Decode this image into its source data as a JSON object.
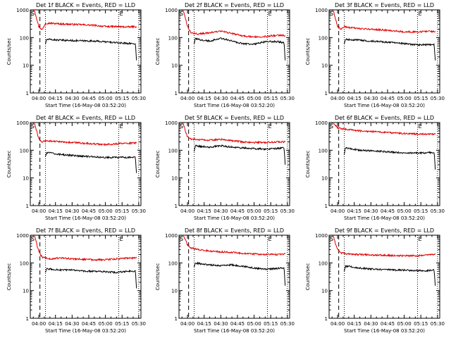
{
  "page": {
    "colors": {
      "events": "#000000",
      "lld": "#e00000",
      "axes": "#000000",
      "background": "#ffffff"
    }
  },
  "chart_data": [
    {
      "type": "line",
      "title": "Det 1f BLACK = Events, RED = LLD",
      "xlabel": "Start Time (16-May-08 03:52:20)",
      "ylabel": "Counts/sec",
      "yscale": "log",
      "ylim": [
        1,
        1000
      ],
      "ytick_labels": [
        "1",
        "10",
        "100",
        "1000"
      ],
      "xlim": [
        "03:52:20",
        "05:32:00"
      ],
      "xtick_labels": [
        "04:00",
        "04:15",
        "04:30",
        "04:45",
        "05:00",
        "05:15",
        "05:30"
      ],
      "markers": {
        "S": "03:52:20",
        "E": "05:12:00"
      },
      "vlines": {
        "dashed": "04:01:00",
        "dotted": [
          "04:06:00",
          "05:12:00",
          "05:30:00"
        ]
      },
      "series": [
        {
          "name": "LLD",
          "color": "red",
          "x": [
            "03:56",
            "03:58",
            "04:00",
            "04:03",
            "04:06",
            "04:10",
            "04:20",
            "04:30",
            "04:40",
            "04:50",
            "05:00",
            "05:10",
            "05:20",
            "05:28"
          ],
          "values": [
            1000,
            500,
            250,
            190,
            330,
            330,
            310,
            300,
            290,
            275,
            250,
            250,
            240,
            250
          ]
        },
        {
          "name": "Events",
          "color": "black",
          "x": [
            "04:06",
            "04:07",
            "04:10",
            "04:20",
            "04:30",
            "04:40",
            "04:50",
            "05:00",
            "05:10",
            "05:20",
            "05:27",
            "05:28"
          ],
          "values": [
            60,
            85,
            85,
            80,
            78,
            76,
            75,
            70,
            65,
            62,
            60,
            15
          ]
        }
      ]
    },
    {
      "type": "line",
      "title": "Det 2f BLACK = Events, RED = LLD",
      "xlabel": "Start Time (16-May-08 03:52:20)",
      "ylabel": "Counts/sec",
      "yscale": "log",
      "ylim": [
        1,
        1000
      ],
      "ytick_labels": [
        "1",
        "10",
        "100",
        "1000"
      ],
      "xlim": [
        "03:52:20",
        "05:32:00"
      ],
      "xtick_labels": [
        "04:00",
        "04:15",
        "04:30",
        "04:45",
        "05:00",
        "05:15",
        "05:30"
      ],
      "markers": {
        "S": "03:52:20",
        "E": "05:12:00"
      },
      "vlines": {
        "dashed": "04:01:00",
        "dotted": [
          "04:06:00",
          "05:12:00",
          "05:30:00"
        ]
      },
      "series": [
        {
          "name": "LLD",
          "color": "red",
          "x": [
            "03:56",
            "03:58",
            "04:00",
            "04:03",
            "04:06",
            "04:10",
            "04:20",
            "04:30",
            "04:40",
            "04:50",
            "05:00",
            "05:10",
            "05:20",
            "05:28"
          ],
          "values": [
            1000,
            500,
            250,
            150,
            140,
            135,
            150,
            170,
            140,
            115,
            105,
            110,
            120,
            120
          ]
        },
        {
          "name": "Events",
          "color": "black",
          "x": [
            "04:06",
            "04:07",
            "04:10",
            "04:20",
            "04:30",
            "04:40",
            "04:50",
            "05:00",
            "05:10",
            "05:20",
            "05:27",
            "05:28"
          ],
          "values": [
            60,
            90,
            85,
            75,
            95,
            75,
            60,
            58,
            70,
            72,
            65,
            15
          ]
        }
      ]
    },
    {
      "type": "line",
      "title": "Det 3f BLACK = Events, RED = LLD",
      "xlabel": "Start Time (16-May-08 03:52:20)",
      "ylabel": "Counts/sec",
      "yscale": "log",
      "ylim": [
        1,
        1000
      ],
      "ytick_labels": [
        "1",
        "10",
        "100",
        "1000"
      ],
      "xlim": [
        "03:52:20",
        "05:32:00"
      ],
      "xtick_labels": [
        "04:00",
        "04:15",
        "04:30",
        "04:45",
        "05:00",
        "05:15",
        "05:30"
      ],
      "markers": {
        "S": "03:52:20",
        "E": "05:12:00"
      },
      "vlines": {
        "dashed": "04:01:00",
        "dotted": [
          "04:06:00",
          "05:12:00",
          "05:30:00"
        ]
      },
      "series": [
        {
          "name": "LLD",
          "color": "red",
          "x": [
            "03:56",
            "03:58",
            "04:00",
            "04:03",
            "04:06",
            "04:10",
            "04:20",
            "04:30",
            "04:40",
            "04:50",
            "05:00",
            "05:10",
            "05:20",
            "05:28"
          ],
          "values": [
            1000,
            500,
            250,
            200,
            250,
            230,
            210,
            200,
            190,
            175,
            160,
            160,
            165,
            170
          ]
        },
        {
          "name": "Events",
          "color": "black",
          "x": [
            "04:06",
            "04:07",
            "04:10",
            "04:20",
            "04:30",
            "04:40",
            "04:50",
            "05:00",
            "05:10",
            "05:20",
            "05:27",
            "05:28"
          ],
          "values": [
            60,
            85,
            85,
            80,
            75,
            70,
            65,
            60,
            55,
            55,
            55,
            15
          ]
        }
      ]
    },
    {
      "type": "line",
      "title": "Det 4f BLACK = Events, RED = LLD",
      "xlabel": "Start Time (16-May-08 03:52:20)",
      "ylabel": "Counts/sec",
      "yscale": "log",
      "ylim": [
        1,
        1000
      ],
      "ytick_labels": [
        "1",
        "10",
        "100",
        "1000"
      ],
      "xlim": [
        "03:52:20",
        "05:32:00"
      ],
      "xtick_labels": [
        "04:00",
        "04:15",
        "04:30",
        "04:45",
        "05:00",
        "05:15",
        "05:30"
      ],
      "markers": {
        "S": "03:52:20",
        "E": "05:12:00"
      },
      "vlines": {
        "dashed": "04:01:00",
        "dotted": [
          "04:06:00",
          "05:12:00",
          "05:30:00"
        ]
      },
      "series": [
        {
          "name": "LLD",
          "color": "red",
          "x": [
            "03:56",
            "03:58",
            "04:00",
            "04:03",
            "04:06",
            "04:10",
            "04:20",
            "04:30",
            "04:40",
            "04:50",
            "05:00",
            "05:10",
            "05:20",
            "05:28"
          ],
          "values": [
            1000,
            500,
            250,
            200,
            220,
            215,
            200,
            190,
            180,
            170,
            160,
            170,
            180,
            180
          ]
        },
        {
          "name": "Events",
          "color": "black",
          "x": [
            "04:06",
            "04:07",
            "04:10",
            "04:20",
            "04:30",
            "04:40",
            "04:50",
            "05:00",
            "05:10",
            "05:20",
            "05:27",
            "05:28"
          ],
          "values": [
            60,
            80,
            80,
            70,
            65,
            60,
            58,
            55,
            55,
            55,
            55,
            15
          ]
        }
      ]
    },
    {
      "type": "line",
      "title": "Det 5f BLACK = Events, RED = LLD",
      "xlabel": "Start Time (16-May-08 03:52:20)",
      "ylabel": "Counts/sec",
      "yscale": "log",
      "ylim": [
        1,
        1000
      ],
      "ytick_labels": [
        "1",
        "10",
        "100",
        "1000"
      ],
      "xlim": [
        "03:52:20",
        "05:32:00"
      ],
      "xtick_labels": [
        "04:00",
        "04:15",
        "04:30",
        "04:45",
        "05:00",
        "05:15",
        "05:30"
      ],
      "markers": {
        "S": "03:52:20",
        "E": "05:12:00"
      },
      "vlines": {
        "dashed": "04:01:00",
        "dotted": [
          "04:06:00",
          "05:12:00",
          "05:30:00"
        ]
      },
      "series": [
        {
          "name": "LLD",
          "color": "red",
          "x": [
            "03:56",
            "03:58",
            "04:00",
            "04:03",
            "04:06",
            "04:10",
            "04:20",
            "04:30",
            "04:40",
            "04:50",
            "05:00",
            "05:10",
            "05:20",
            "05:28"
          ],
          "values": [
            1000,
            500,
            300,
            250,
            250,
            240,
            230,
            250,
            220,
            200,
            190,
            190,
            200,
            200
          ]
        },
        {
          "name": "Events",
          "color": "black",
          "x": [
            "04:06",
            "04:07",
            "04:10",
            "04:20",
            "04:30",
            "04:40",
            "04:50",
            "05:00",
            "05:10",
            "05:20",
            "05:27",
            "05:28"
          ],
          "values": [
            90,
            150,
            140,
            130,
            145,
            130,
            120,
            115,
            110,
            115,
            120,
            30
          ]
        }
      ]
    },
    {
      "type": "line",
      "title": "Det 6f BLACK = Events, RED = LLD",
      "xlabel": "Start Time (16-May-08 03:52:20)",
      "ylabel": "Counts/sec",
      "yscale": "log",
      "ylim": [
        1,
        1000
      ],
      "ytick_labels": [
        "1",
        "10",
        "100",
        "1000"
      ],
      "xlim": [
        "03:52:20",
        "05:32:00"
      ],
      "xtick_labels": [
        "04:00",
        "04:15",
        "04:30",
        "04:45",
        "05:00",
        "05:15",
        "05:30"
      ],
      "markers": {
        "S": "03:52:20",
        "E": "05:12:00"
      },
      "vlines": {
        "dashed": "04:01:00",
        "dotted": [
          "04:06:00",
          "05:12:00",
          "05:30:00"
        ]
      },
      "series": [
        {
          "name": "LLD",
          "color": "red",
          "x": [
            "03:56",
            "03:58",
            "04:00",
            "04:03",
            "04:06",
            "04:10",
            "04:20",
            "04:30",
            "04:40",
            "04:50",
            "05:00",
            "05:10",
            "05:20",
            "05:28"
          ],
          "values": [
            1000,
            800,
            650,
            600,
            580,
            560,
            500,
            470,
            450,
            420,
            400,
            390,
            380,
            380
          ]
        },
        {
          "name": "Events",
          "color": "black",
          "x": [
            "04:06",
            "04:07",
            "04:10",
            "04:20",
            "04:30",
            "04:40",
            "04:50",
            "05:00",
            "05:10",
            "05:20",
            "05:27",
            "05:28"
          ],
          "values": [
            70,
            120,
            115,
            100,
            95,
            90,
            85,
            80,
            80,
            80,
            85,
            20
          ]
        }
      ]
    },
    {
      "type": "line",
      "title": "Det 7f BLACK = Events, RED = LLD",
      "xlabel": "Start Time (16-May-08 03:52:20)",
      "ylabel": "Counts/sec",
      "yscale": "log",
      "ylim": [
        1,
        1000
      ],
      "ytick_labels": [
        "1",
        "10",
        "100",
        "1000"
      ],
      "xlim": [
        "03:52:20",
        "05:32:00"
      ],
      "xtick_labels": [
        "04:00",
        "04:15",
        "04:30",
        "04:45",
        "05:00",
        "05:15",
        "05:30"
      ],
      "markers": {
        "S": "03:52:20",
        "E": "05:12:00"
      },
      "vlines": {
        "dashed": "04:01:00",
        "dotted": [
          "04:06:00",
          "05:12:00",
          "05:30:00"
        ]
      },
      "series": [
        {
          "name": "LLD",
          "color": "red",
          "x": [
            "03:56",
            "03:58",
            "04:00",
            "04:03",
            "04:06",
            "04:10",
            "04:20",
            "04:30",
            "04:40",
            "04:50",
            "05:00",
            "05:10",
            "05:20",
            "05:28"
          ],
          "values": [
            1000,
            500,
            250,
            160,
            150,
            140,
            150,
            140,
            135,
            130,
            130,
            140,
            150,
            150
          ]
        },
        {
          "name": "Events",
          "color": "black",
          "x": [
            "04:06",
            "04:07",
            "04:10",
            "04:20",
            "04:30",
            "04:40",
            "04:50",
            "05:00",
            "05:10",
            "05:20",
            "05:27",
            "05:28"
          ],
          "values": [
            45,
            60,
            60,
            55,
            55,
            50,
            50,
            48,
            45,
            50,
            50,
            12
          ]
        }
      ]
    },
    {
      "type": "line",
      "title": "Det 8f BLACK = Events, RED = LLD",
      "xlabel": "Start Time (16-May-08 03:52:20)",
      "ylabel": "Counts/sec",
      "yscale": "log",
      "ylim": [
        1,
        1000
      ],
      "ytick_labels": [
        "1",
        "10",
        "100",
        "1000"
      ],
      "xlim": [
        "03:52:20",
        "05:32:00"
      ],
      "xtick_labels": [
        "04:00",
        "04:15",
        "04:30",
        "04:45",
        "05:00",
        "05:15",
        "05:30"
      ],
      "markers": {
        "S": "03:52:20",
        "E": "05:12:00"
      },
      "vlines": {
        "dashed": "04:01:00",
        "dotted": [
          "04:06:00",
          "05:12:00",
          "05:30:00"
        ]
      },
      "series": [
        {
          "name": "LLD",
          "color": "red",
          "x": [
            "03:56",
            "03:58",
            "04:00",
            "04:03",
            "04:06",
            "04:10",
            "04:20",
            "04:30",
            "04:40",
            "04:50",
            "05:00",
            "05:10",
            "05:20",
            "05:28"
          ],
          "values": [
            1000,
            700,
            450,
            350,
            330,
            300,
            270,
            250,
            240,
            220,
            210,
            200,
            200,
            210
          ]
        },
        {
          "name": "Events",
          "color": "black",
          "x": [
            "04:06",
            "04:07",
            "04:10",
            "04:20",
            "04:30",
            "04:40",
            "04:50",
            "05:00",
            "05:10",
            "05:20",
            "05:27",
            "05:28"
          ],
          "values": [
            70,
            100,
            95,
            85,
            80,
            85,
            75,
            65,
            60,
            62,
            65,
            15
          ]
        }
      ]
    },
    {
      "type": "line",
      "title": "Det 9f BLACK = Events, RED = LLD",
      "xlabel": "Start Time (16-May-08 03:52:20)",
      "ylabel": "Counts/sec",
      "yscale": "log",
      "ylim": [
        1,
        1000
      ],
      "ytick_labels": [
        "1",
        "10",
        "100",
        "1000"
      ],
      "xlim": [
        "03:52:20",
        "05:32:00"
      ],
      "xtick_labels": [
        "04:00",
        "04:15",
        "04:30",
        "04:45",
        "05:00",
        "05:15",
        "05:30"
      ],
      "markers": {
        "S": "03:52:20",
        "E": "05:12:00"
      },
      "vlines": {
        "dashed": "04:01:00",
        "dotted": [
          "04:06:00",
          "05:12:00",
          "05:30:00"
        ]
      },
      "series": [
        {
          "name": "LLD",
          "color": "red",
          "x": [
            "03:56",
            "03:58",
            "04:00",
            "04:03",
            "04:06",
            "04:10",
            "04:20",
            "04:30",
            "04:40",
            "04:50",
            "05:00",
            "05:10",
            "05:20",
            "05:28"
          ],
          "values": [
            1000,
            500,
            300,
            230,
            220,
            210,
            200,
            195,
            190,
            185,
            180,
            180,
            190,
            200
          ]
        },
        {
          "name": "Events",
          "color": "black",
          "x": [
            "04:06",
            "04:07",
            "04:10",
            "04:20",
            "04:30",
            "04:40",
            "04:50",
            "05:00",
            "05:10",
            "05:20",
            "05:27",
            "05:28"
          ],
          "values": [
            50,
            75,
            75,
            65,
            60,
            58,
            55,
            55,
            52,
            52,
            55,
            15
          ]
        }
      ]
    }
  ]
}
